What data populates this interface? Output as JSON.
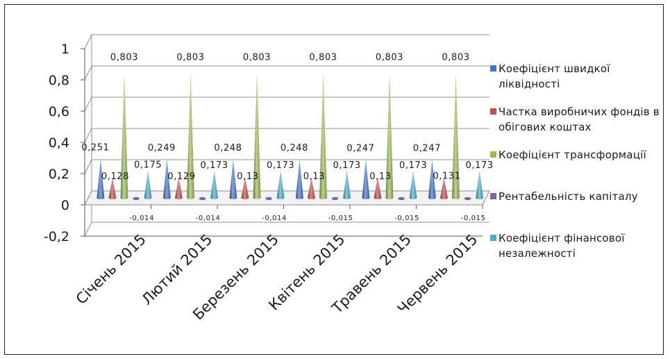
{
  "chart_data": {
    "type": "bar",
    "style": "3d-cone",
    "categories": [
      "Січень 2015",
      "Лютий 2015",
      "Березень 2015",
      "Квітень 2015",
      "Травень 2015",
      "Червень 2015"
    ],
    "ylim": [
      -0.2,
      1
    ],
    "yticks": [
      "-0,2",
      "0",
      "0,2",
      "0,4",
      "0,6",
      "0,8",
      "1"
    ],
    "ytick_values": [
      -0.2,
      0,
      0.2,
      0.4,
      0.6,
      0.8,
      1
    ],
    "grid": true,
    "legend_position": "right",
    "series": [
      {
        "name": "Коефіцієнт швидкої ліквідності",
        "color": "#4472C4",
        "values": [
          0.251,
          0.249,
          0.248,
          0.248,
          0.247,
          0.247
        ],
        "labels": [
          "0,251",
          "0,249",
          "0,248",
          "0,248",
          "0,247",
          "0,247"
        ]
      },
      {
        "name": "Частка виробничих фондів в обігових коштах",
        "color": "#C0504D",
        "values": [
          0.128,
          0.129,
          0.13,
          0.13,
          0.13,
          0.131
        ],
        "labels": [
          "0,128",
          "0,129",
          "0,13",
          "0,13",
          "0,13",
          "0,131"
        ]
      },
      {
        "name": "Коефіцієнт трансформації",
        "color": "#9BBB59",
        "values": [
          0.803,
          0.803,
          0.803,
          0.803,
          0.803,
          0.803
        ],
        "labels": [
          "0,803",
          "0,803",
          "0,803",
          "0,803",
          "0,803",
          "0,803"
        ]
      },
      {
        "name": "Рентабельність капіталу",
        "color": "#8064A2",
        "values": [
          -0.014,
          -0.014,
          -0.014,
          -0.015,
          -0.015,
          -0.015
        ],
        "labels": [
          "-0,014",
          "-0,014",
          "-0,014",
          "-0,015",
          "-0,015",
          "-0,015"
        ]
      },
      {
        "name": "Коефіцієнт фінансової незалежності",
        "color": "#4BACC6",
        "values": [
          0.175,
          0.173,
          0.173,
          0.173,
          0.173,
          0.173
        ],
        "labels": [
          "0,175",
          "0,173",
          "0,173",
          "0,173",
          "0,173",
          "0,173"
        ]
      }
    ]
  }
}
